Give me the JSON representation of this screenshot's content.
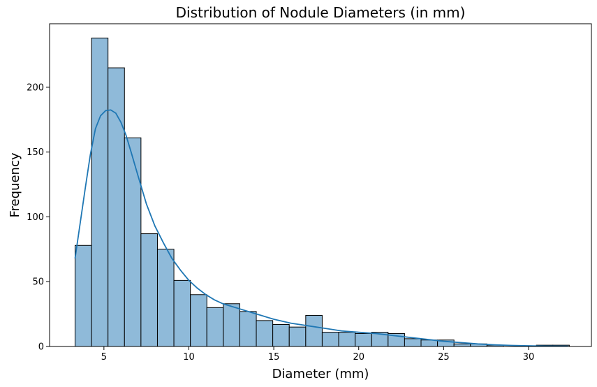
{
  "chart_data": {
    "type": "bar",
    "subtype": "histogram-with-kde",
    "title": "Distribution of Nodule Diameters (in mm)",
    "xlabel": "Diameter (mm)",
    "ylabel": "Frequency",
    "xlim": [
      1.8,
      33.7
    ],
    "ylim": [
      0,
      249
    ],
    "xticks": [
      5,
      10,
      15,
      20,
      25,
      30
    ],
    "yticks": [
      0,
      50,
      100,
      150,
      200
    ],
    "grid": false,
    "legend": "none",
    "colors": {
      "bar_fill": "#8fbad9",
      "bar_edge": "#000000",
      "kde": "#1f77b4"
    },
    "bins": [
      {
        "x0": 3.3,
        "x1": 4.27,
        "count": 78
      },
      {
        "x0": 4.27,
        "x1": 5.24,
        "count": 238
      },
      {
        "x0": 5.24,
        "x1": 6.21,
        "count": 215
      },
      {
        "x0": 6.21,
        "x1": 7.18,
        "count": 161
      },
      {
        "x0": 7.18,
        "x1": 8.15,
        "count": 87
      },
      {
        "x0": 8.15,
        "x1": 9.12,
        "count": 75
      },
      {
        "x0": 9.12,
        "x1": 10.09,
        "count": 51
      },
      {
        "x0": 10.09,
        "x1": 11.06,
        "count": 40
      },
      {
        "x0": 11.06,
        "x1": 12.03,
        "count": 30
      },
      {
        "x0": 12.03,
        "x1": 13.0,
        "count": 33
      },
      {
        "x0": 13.0,
        "x1": 13.97,
        "count": 27
      },
      {
        "x0": 13.97,
        "x1": 14.94,
        "count": 20
      },
      {
        "x0": 14.94,
        "x1": 15.91,
        "count": 17
      },
      {
        "x0": 15.91,
        "x1": 16.88,
        "count": 15
      },
      {
        "x0": 16.88,
        "x1": 17.85,
        "count": 24
      },
      {
        "x0": 17.85,
        "x1": 18.82,
        "count": 11
      },
      {
        "x0": 18.82,
        "x1": 19.79,
        "count": 11
      },
      {
        "x0": 19.79,
        "x1": 20.76,
        "count": 10
      },
      {
        "x0": 20.76,
        "x1": 21.73,
        "count": 11
      },
      {
        "x0": 21.73,
        "x1": 22.7,
        "count": 10
      },
      {
        "x0": 22.7,
        "x1": 23.67,
        "count": 6
      },
      {
        "x0": 23.67,
        "x1": 24.64,
        "count": 5
      },
      {
        "x0": 24.64,
        "x1": 25.61,
        "count": 5
      },
      {
        "x0": 25.61,
        "x1": 26.58,
        "count": 2
      },
      {
        "x0": 26.58,
        "x1": 27.55,
        "count": 2
      },
      {
        "x0": 27.55,
        "x1": 28.52,
        "count": 1
      },
      {
        "x0": 28.52,
        "x1": 29.49,
        "count": 0
      },
      {
        "x0": 29.49,
        "x1": 30.46,
        "count": 0
      },
      {
        "x0": 30.46,
        "x1": 31.43,
        "count": 1
      },
      {
        "x0": 31.43,
        "x1": 32.4,
        "count": 1
      }
    ],
    "kde": {
      "x": [
        3.3,
        3.6,
        3.9,
        4.2,
        4.5,
        4.8,
        5.1,
        5.4,
        5.7,
        6.0,
        6.3,
        6.6,
        7.0,
        7.5,
        8.0,
        8.5,
        9.0,
        9.5,
        10.0,
        10.5,
        11.0,
        11.5,
        12.0,
        12.5,
        13.0,
        14.0,
        15.0,
        16.0,
        17.0,
        18.0,
        19.0,
        20.0,
        21.0,
        22.0,
        23.0,
        24.0,
        25.0,
        26.0,
        27.0,
        28.0,
        29.0,
        30.0,
        31.0,
        32.3
      ],
      "y": [
        68,
        95,
        122,
        148,
        168,
        178,
        182,
        182.5,
        180,
        173,
        163,
        150,
        132,
        110,
        93,
        80,
        68,
        59,
        51,
        45,
        40,
        36,
        33,
        31,
        29,
        25,
        21,
        18,
        16,
        14,
        12,
        11,
        10,
        8.5,
        7,
        5.5,
        4,
        3,
        2,
        1.3,
        0.8,
        0.5,
        0.3,
        0.2
      ]
    }
  }
}
